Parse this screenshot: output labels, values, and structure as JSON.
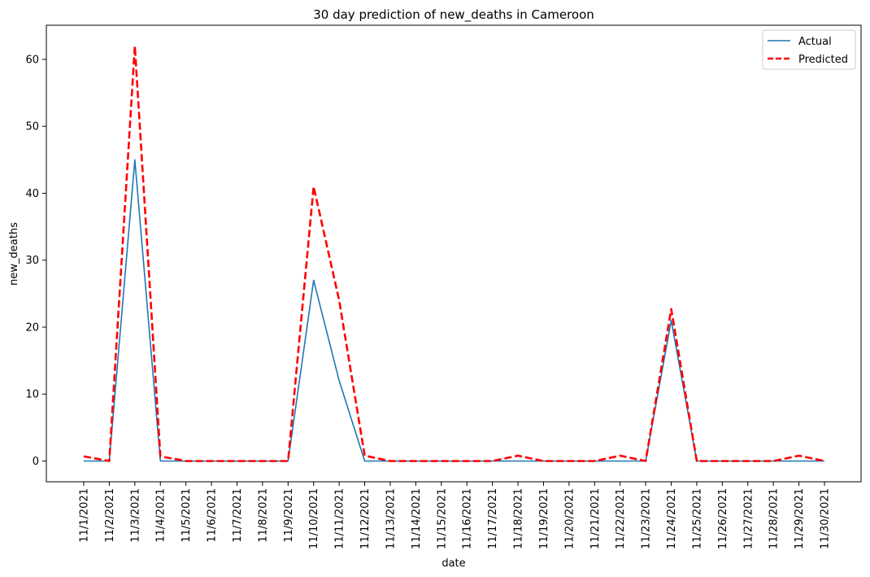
{
  "chart_data": {
    "type": "line",
    "title": "30 day prediction of new_deaths in Cameroon",
    "xlabel": "date",
    "ylabel": "new_deaths",
    "x": [
      "11/1/2021",
      "11/2/2021",
      "11/3/2021",
      "11/4/2021",
      "11/5/2021",
      "11/6/2021",
      "11/7/2021",
      "11/8/2021",
      "11/9/2021",
      "11/10/2021",
      "11/11/2021",
      "11/12/2021",
      "11/13/2021",
      "11/14/2021",
      "11/15/2021",
      "11/16/2021",
      "11/17/2021",
      "11/18/2021",
      "11/19/2021",
      "11/20/2021",
      "11/21/2021",
      "11/22/2021",
      "11/23/2021",
      "11/24/2021",
      "11/25/2021",
      "11/26/2021",
      "11/27/2021",
      "11/28/2021",
      "11/29/2021",
      "11/30/2021"
    ],
    "ylim": [
      -3.1,
      65.1
    ],
    "yticks": [
      0,
      10,
      20,
      30,
      40,
      50,
      60
    ],
    "grid": false,
    "legend_position": "top-right",
    "series": [
      {
        "name": "Actual",
        "color": "#1f77b4",
        "style": "solid",
        "values": [
          0,
          0,
          45,
          0,
          0,
          0,
          0,
          0,
          0,
          27,
          12,
          0,
          0,
          0,
          0,
          0,
          0,
          0,
          0,
          0,
          0,
          0,
          0,
          21,
          0,
          0,
          0,
          0,
          0,
          0
        ]
      },
      {
        "name": "Predicted",
        "color": "#ff0000",
        "style": "dashed",
        "values": [
          0.7,
          0,
          62,
          0.7,
          0,
          0,
          0,
          0,
          0,
          41,
          24,
          0.8,
          0,
          0,
          0,
          0,
          0,
          0.8,
          0,
          0,
          0,
          0.8,
          0,
          22.7,
          0,
          0,
          0,
          0,
          0.8,
          0
        ]
      }
    ]
  }
}
